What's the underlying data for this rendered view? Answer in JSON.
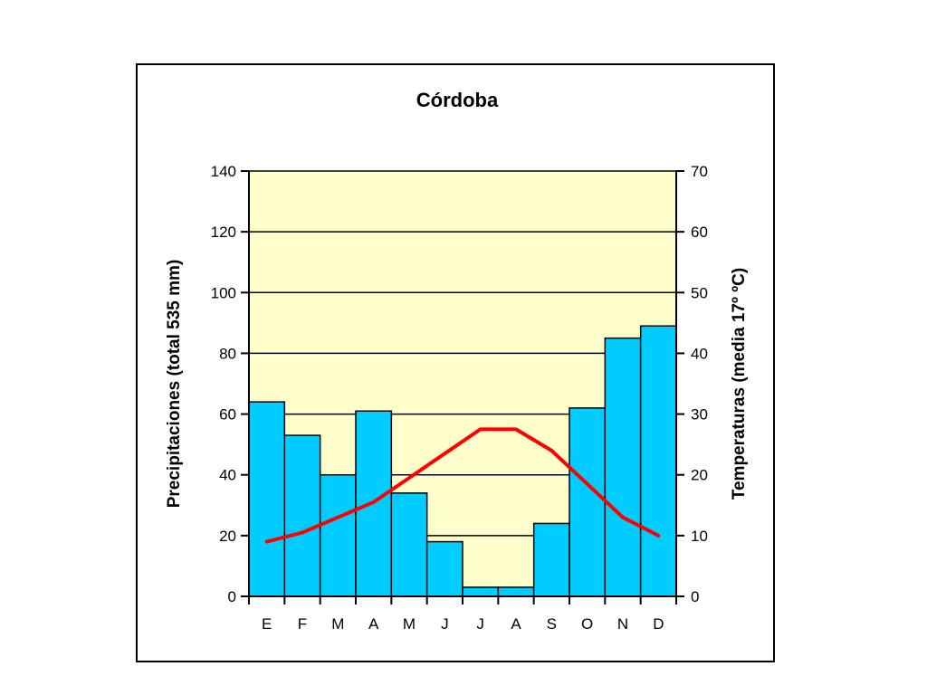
{
  "chart_data": {
    "type": "bar",
    "title": "Córdoba",
    "categories": [
      "E",
      "F",
      "M",
      "A",
      "M",
      "J",
      "J",
      "A",
      "S",
      "O",
      "N",
      "D"
    ],
    "series": [
      {
        "name": "Precipitaciones",
        "type": "bar",
        "axis": "left",
        "values": [
          64,
          53,
          40,
          61,
          34,
          18,
          3,
          3,
          24,
          62,
          85,
          89
        ]
      },
      {
        "name": "Temperaturas",
        "type": "line",
        "axis": "right",
        "values": [
          9,
          10.5,
          13,
          15.5,
          19.5,
          23.5,
          27.5,
          27.5,
          24,
          18.5,
          13,
          10
        ]
      }
    ],
    "ylabel": "Precipitaciones (total 535 mm)",
    "ylabel_right": "Temperaturas (media 17º ºC)",
    "ylim": [
      0,
      140
    ],
    "ylim_right": [
      0,
      70
    ],
    "yticks": [
      0,
      20,
      40,
      60,
      80,
      100,
      120,
      140
    ],
    "yticks_right": [
      0,
      10,
      20,
      30,
      40,
      50,
      60,
      70
    ],
    "grid": true,
    "legend": "none",
    "colors": {
      "bar_fill": "#00ccff",
      "bar_stroke": "#000000",
      "line": "#ff0000",
      "plot_background": "#ffffcc",
      "grid": "#000000"
    }
  }
}
